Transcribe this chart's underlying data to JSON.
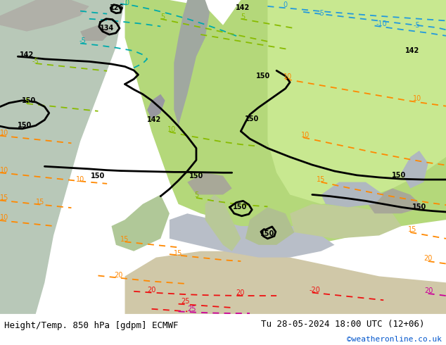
{
  "title_left": "Height/Temp. 850 hPa [gdpm] ECMWF",
  "title_right": "Tu 28-05-2024 18:00 UTC (12+06)",
  "credit": "©weatheronline.co.uk",
  "fig_width": 6.34,
  "fig_height": 4.9,
  "dpi": 100,
  "title_fontsize": 9.0,
  "credit_color": "#0055cc",
  "bottom_bg": "#ffffff",
  "map_bg": "#c8c8c8",
  "land_green": "#b8d878",
  "land_gray": "#a8a8a8",
  "sea_light": "#c0ccc0",
  "black_lw": 2.0,
  "colored_lw": 1.3,
  "label_fs": 7.0,
  "teal": "#00aaaa",
  "cyan_blue": "#2299dd",
  "lgreen": "#88bb00",
  "orange": "#ff8800",
  "red_c": "#ee1111",
  "magenta": "#cc0099"
}
